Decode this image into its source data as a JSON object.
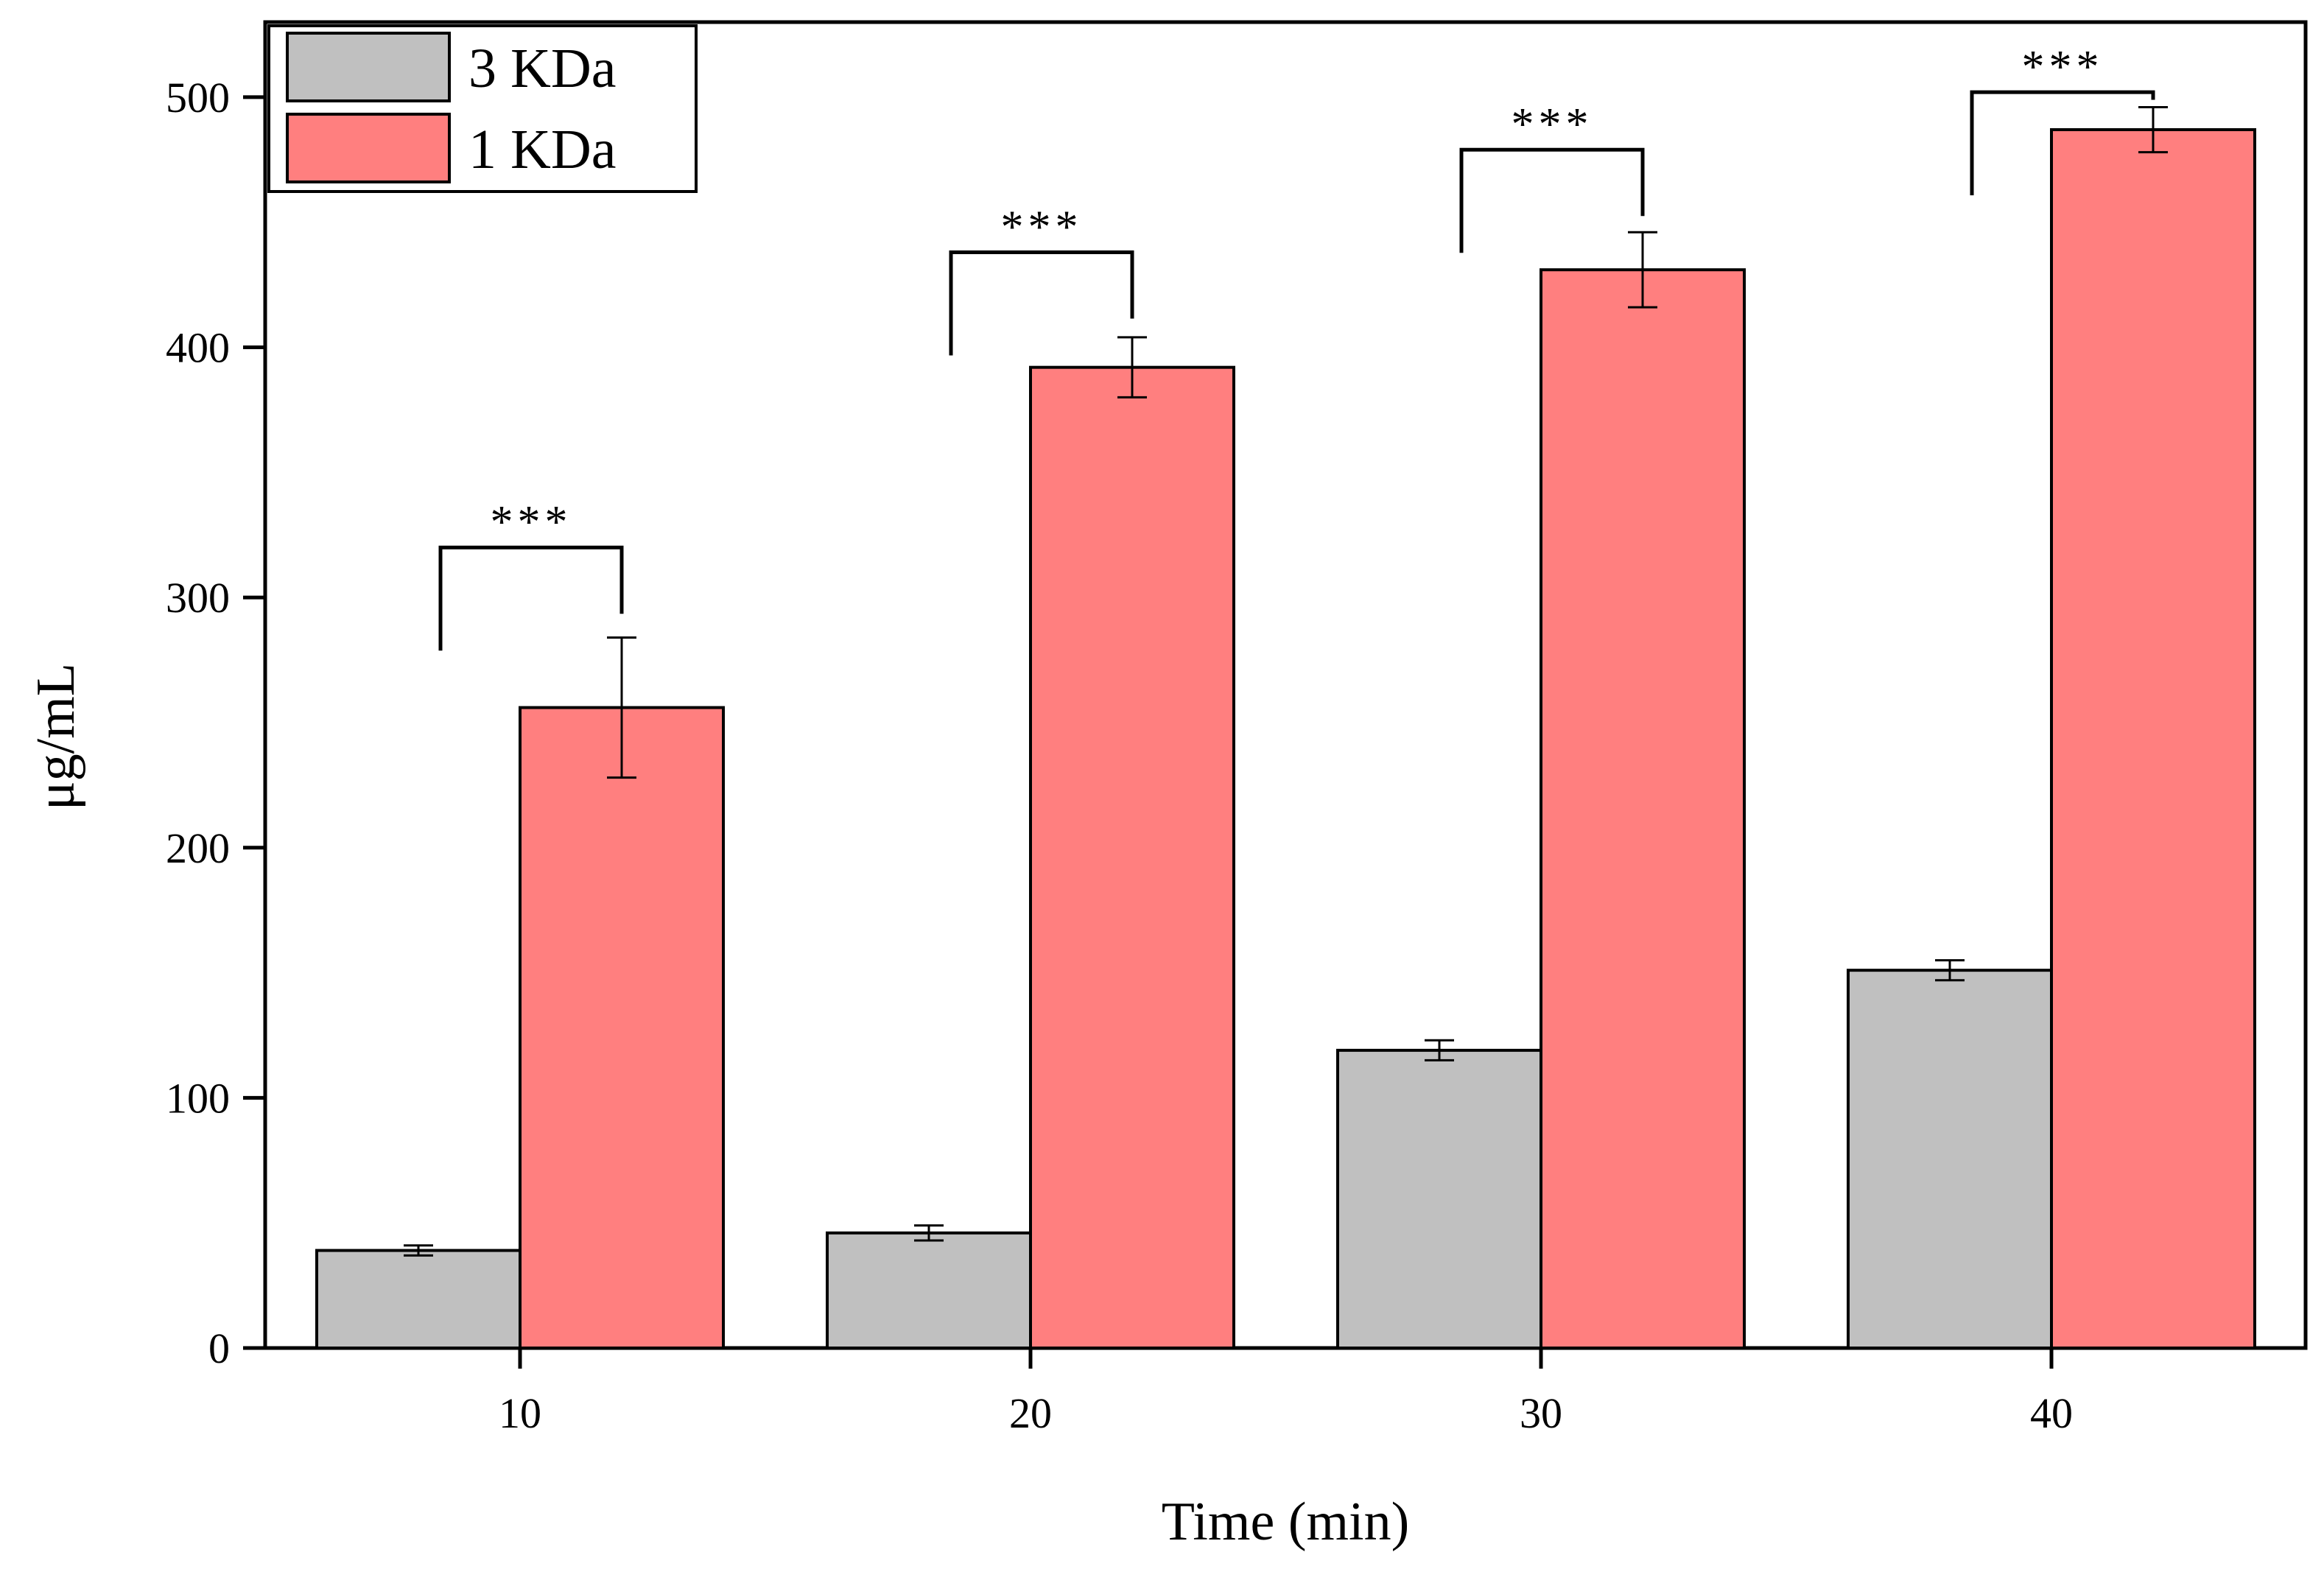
{
  "chart_data": {
    "type": "bar",
    "title": "",
    "xlabel": "Time (min)",
    "ylabel": "μg/mL",
    "categories": [
      "10",
      "20",
      "30",
      "40"
    ],
    "ylim": [
      0,
      530
    ],
    "yticks": [
      "0",
      "100",
      "200",
      "300",
      "400",
      "500"
    ],
    "series": [
      {
        "name": "3 KDa",
        "color": "#c0c0c0",
        "values": [
          39,
          46,
          119,
          151
        ],
        "errors": [
          2,
          3,
          4,
          4
        ]
      },
      {
        "name": "1 KDa",
        "color": "#ff7f7f",
        "values": [
          256,
          392,
          431,
          487
        ],
        "errors": [
          28,
          12,
          15,
          9
        ]
      }
    ],
    "annotations": [
      "***",
      "***",
      "***",
      "***"
    ],
    "annotation_levels": [
      320,
      438,
      479,
      502
    ],
    "legend_position": "top-left",
    "grid": false
  }
}
